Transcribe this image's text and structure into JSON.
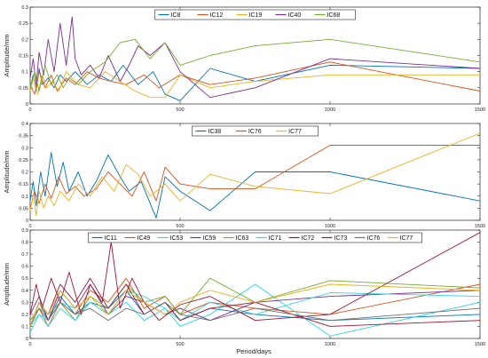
{
  "colors": {
    "blue": "#0072BD",
    "orange": "#D95319",
    "yellow": "#EDB120",
    "purple": "#7E2F8E",
    "green": "#77AC30",
    "cyan": "#2BD5E0",
    "darkred": "#A2142F",
    "gray": "#707070"
  },
  "chart_data": [
    {
      "type": "line",
      "ylabel": "Amplitude/mm",
      "xlim": [
        0,
        1500
      ],
      "ylim": [
        0,
        0.3
      ],
      "xticks": [
        "0",
        "500",
        "1000",
        "1500"
      ],
      "yticks": [
        "0",
        "0.05",
        "0.1",
        "0.15",
        "0.2",
        "0.25",
        "0.3"
      ],
      "legend_position": "top",
      "series": [
        {
          "name": "IC8",
          "color": "blue",
          "x": [
            0,
            10,
            20,
            30,
            40,
            60,
            80,
            100,
            120,
            150,
            190,
            230,
            270,
            310,
            360,
            410,
            450,
            500,
            600,
            750,
            1000,
            1500
          ],
          "y": [
            0.05,
            0.09,
            0.04,
            0.11,
            0.06,
            0.08,
            0.05,
            0.09,
            0.07,
            0.1,
            0.06,
            0.09,
            0.07,
            0.12,
            0.06,
            0.1,
            0.03,
            0.01,
            0.11,
            0.07,
            0.12,
            0.11
          ]
        },
        {
          "name": "IC12",
          "color": "orange",
          "x": [
            0,
            15,
            30,
            50,
            70,
            90,
            120,
            150,
            190,
            230,
            270,
            320,
            380,
            430,
            500,
            600,
            750,
            1000,
            1500
          ],
          "y": [
            0.06,
            0.03,
            0.1,
            0.05,
            0.09,
            0.04,
            0.08,
            0.06,
            0.1,
            0.08,
            0.07,
            0.06,
            0.09,
            0.05,
            0.09,
            0.06,
            0.08,
            0.13,
            0.04
          ]
        },
        {
          "name": "IC19",
          "color": "yellow",
          "x": [
            0,
            12,
            25,
            40,
            55,
            75,
            95,
            120,
            160,
            200,
            250,
            300,
            350,
            400,
            450,
            500,
            600,
            750,
            1000,
            1500
          ],
          "y": [
            0.04,
            0.08,
            0.03,
            0.09,
            0.05,
            0.07,
            0.04,
            0.1,
            0.06,
            0.05,
            0.1,
            0.07,
            0.04,
            0.02,
            0.02,
            0.09,
            0.05,
            0.07,
            0.09,
            0.09
          ]
        },
        {
          "name": "IC40",
          "color": "purple",
          "x": [
            0,
            10,
            20,
            30,
            45,
            60,
            80,
            100,
            120,
            140,
            150,
            170,
            200,
            230,
            260,
            300,
            330,
            360,
            400,
            450,
            500,
            600,
            750,
            1000,
            1500
          ],
          "y": [
            0.08,
            0.14,
            0.06,
            0.16,
            0.09,
            0.2,
            0.1,
            0.25,
            0.12,
            0.27,
            0.14,
            0.09,
            0.12,
            0.08,
            0.15,
            0.07,
            0.12,
            0.18,
            0.15,
            0.19,
            0.1,
            0.02,
            0.05,
            0.14,
            0.11
          ]
        },
        {
          "name": "IC68",
          "color": "green",
          "x": [
            0,
            15,
            30,
            50,
            70,
            90,
            110,
            130,
            160,
            200,
            250,
            300,
            350,
            400,
            450,
            500,
            600,
            750,
            1000,
            1500
          ],
          "y": [
            0.05,
            0.1,
            0.04,
            0.12,
            0.06,
            0.09,
            0.05,
            0.08,
            0.06,
            0.1,
            0.13,
            0.19,
            0.2,
            0.14,
            0.19,
            0.12,
            0.15,
            0.18,
            0.2,
            0.13
          ]
        }
      ]
    },
    {
      "type": "line",
      "ylabel": "Amplitude/mm",
      "xlim": [
        0,
        1500
      ],
      "ylim": [
        0,
        0.4
      ],
      "xticks": [
        "0",
        "500",
        "1000",
        "1500"
      ],
      "yticks": [
        "0",
        "0.05",
        "0.1",
        "0.15",
        "0.2",
        "0.25",
        "0.3",
        "0.35",
        "0.4"
      ],
      "legend_position": "top",
      "series": [
        {
          "name": "IC38",
          "color": "blue",
          "x": [
            0,
            10,
            20,
            35,
            50,
            70,
            90,
            110,
            130,
            160,
            190,
            220,
            260,
            300,
            330,
            370,
            420,
            450,
            500,
            600,
            750,
            1000,
            1500
          ],
          "y": [
            0.08,
            0.16,
            0.06,
            0.2,
            0.1,
            0.28,
            0.14,
            0.24,
            0.12,
            0.2,
            0.1,
            0.16,
            0.27,
            0.18,
            0.12,
            0.16,
            0.01,
            0.18,
            0.12,
            0.04,
            0.2,
            0.2,
            0.08
          ]
        },
        {
          "name": "IC76",
          "color": "orange",
          "x": [
            0,
            15,
            30,
            50,
            70,
            95,
            120,
            150,
            180,
            220,
            260,
            300,
            340,
            380,
            420,
            450,
            500,
            600,
            750,
            1000,
            1500
          ],
          "y": [
            0.05,
            0.12,
            0.07,
            0.15,
            0.09,
            0.18,
            0.11,
            0.14,
            0.1,
            0.13,
            0.2,
            0.15,
            0.1,
            0.2,
            0.08,
            0.22,
            0.15,
            0.13,
            0.13,
            0.31,
            0.31
          ]
        },
        {
          "name": "IC77",
          "color": "yellow",
          "x": [
            0,
            10,
            20,
            30,
            45,
            60,
            80,
            100,
            130,
            160,
            200,
            240,
            280,
            320,
            360,
            400,
            450,
            500,
            600,
            750,
            1000,
            1500
          ],
          "y": [
            0.04,
            0.1,
            0.02,
            0.12,
            0.05,
            0.1,
            0.06,
            0.12,
            0.08,
            0.15,
            0.1,
            0.18,
            0.12,
            0.23,
            0.19,
            0.1,
            0.15,
            0.08,
            0.19,
            0.14,
            0.11,
            0.36
          ]
        }
      ]
    },
    {
      "type": "line",
      "xlabel": "Period/days",
      "ylabel": "Amplitude/mm",
      "xlim": [
        0,
        1500
      ],
      "ylim": [
        0,
        0.9
      ],
      "xticks": [
        "0",
        "500",
        "1000",
        "1500"
      ],
      "yticks": [
        "0",
        "0.1",
        "0.2",
        "0.3",
        "0.4",
        "0.5",
        "0.6",
        "0.7",
        "0.8",
        "0.9"
      ],
      "legend_position": "top",
      "series": [
        {
          "name": "IC11",
          "color": "blue",
          "x": [
            0,
            30,
            60,
            100,
            150,
            200,
            260,
            320,
            380,
            450,
            500,
            600,
            750,
            1000,
            1500
          ],
          "y": [
            0.1,
            0.3,
            0.15,
            0.35,
            0.2,
            0.3,
            0.25,
            0.4,
            0.2,
            0.3,
            0.15,
            0.25,
            0.2,
            0.15,
            0.2
          ]
        },
        {
          "name": "IC49",
          "color": "orange",
          "x": [
            0,
            30,
            60,
            100,
            150,
            200,
            260,
            320,
            380,
            450,
            500,
            600,
            750,
            1000,
            1500
          ],
          "y": [
            0.15,
            0.25,
            0.1,
            0.3,
            0.2,
            0.4,
            0.3,
            0.5,
            0.25,
            0.35,
            0.2,
            0.3,
            0.25,
            0.2,
            0.45
          ]
        },
        {
          "name": "IC53",
          "color": "cyan",
          "x": [
            0,
            30,
            60,
            100,
            150,
            200,
            260,
            320,
            380,
            450,
            500,
            600,
            750,
            1000,
            1500
          ],
          "y": [
            0.1,
            0.2,
            0.15,
            0.3,
            0.25,
            0.35,
            0.2,
            0.3,
            0.15,
            0.25,
            0.1,
            0.2,
            0.45,
            0.02,
            0.3
          ]
        },
        {
          "name": "IC59",
          "color": "purple",
          "x": [
            0,
            30,
            60,
            100,
            150,
            200,
            260,
            320,
            380,
            450,
            500,
            600,
            750,
            1000,
            1500
          ],
          "y": [
            0.2,
            0.35,
            0.15,
            0.4,
            0.25,
            0.45,
            0.2,
            0.35,
            0.3,
            0.2,
            0.25,
            0.15,
            0.3,
            0.35,
            0.4
          ]
        },
        {
          "name": "IC63",
          "color": "green",
          "x": [
            0,
            30,
            60,
            100,
            150,
            200,
            260,
            320,
            380,
            450,
            500,
            600,
            750,
            1000,
            1500
          ],
          "y": [
            0.15,
            0.25,
            0.2,
            0.3,
            0.15,
            0.35,
            0.25,
            0.45,
            0.3,
            0.35,
            0.2,
            0.5,
            0.3,
            0.48,
            0.42
          ]
        },
        {
          "name": "IC71",
          "color": "cyan",
          "x": [
            0,
            30,
            60,
            100,
            150,
            200,
            260,
            320,
            380,
            450,
            500,
            600,
            750,
            1000,
            1500
          ],
          "y": [
            0.05,
            0.2,
            0.1,
            0.25,
            0.15,
            0.3,
            0.2,
            0.4,
            0.35,
            0.25,
            0.15,
            0.3,
            0.2,
            0.38,
            0.35
          ]
        },
        {
          "name": "IC72",
          "color": "darkred",
          "x": [
            0,
            20,
            40,
            70,
            100,
            130,
            170,
            200,
            240,
            270,
            300,
            340,
            380,
            430,
            500,
            600,
            750,
            1000,
            1500
          ],
          "y": [
            0.2,
            0.45,
            0.25,
            0.5,
            0.3,
            0.55,
            0.2,
            0.45,
            0.3,
            0.8,
            0.25,
            0.5,
            0.3,
            0.15,
            0.28,
            0.35,
            0.15,
            0.2,
            0.88
          ]
        },
        {
          "name": "IC73",
          "color": "darkred",
          "x": [
            0,
            30,
            60,
            100,
            150,
            200,
            260,
            320,
            380,
            450,
            500,
            600,
            750,
            1000,
            1500
          ],
          "y": [
            0.1,
            0.3,
            0.2,
            0.45,
            0.3,
            0.5,
            0.25,
            0.45,
            0.2,
            0.3,
            0.15,
            0.25,
            0.3,
            0.1,
            0.15
          ]
        },
        {
          "name": "IC76",
          "color": "gray",
          "x": [
            0,
            30,
            60,
            100,
            150,
            200,
            260,
            320,
            380,
            450,
            500,
            600,
            750,
            1000,
            1500
          ],
          "y": [
            0.1,
            0.25,
            0.15,
            0.3,
            0.2,
            0.25,
            0.15,
            0.25,
            0.2,
            0.3,
            0.2,
            0.15,
            0.25,
            0.15,
            0.25
          ]
        },
        {
          "name": "IC77",
          "color": "yellow",
          "x": [
            0,
            30,
            60,
            100,
            150,
            200,
            260,
            320,
            380,
            450,
            500,
            600,
            750,
            1000,
            1500
          ],
          "y": [
            0.1,
            0.3,
            0.2,
            0.4,
            0.25,
            0.35,
            0.2,
            0.4,
            0.3,
            0.2,
            0.3,
            0.4,
            0.3,
            0.45,
            0.4
          ]
        }
      ]
    }
  ]
}
